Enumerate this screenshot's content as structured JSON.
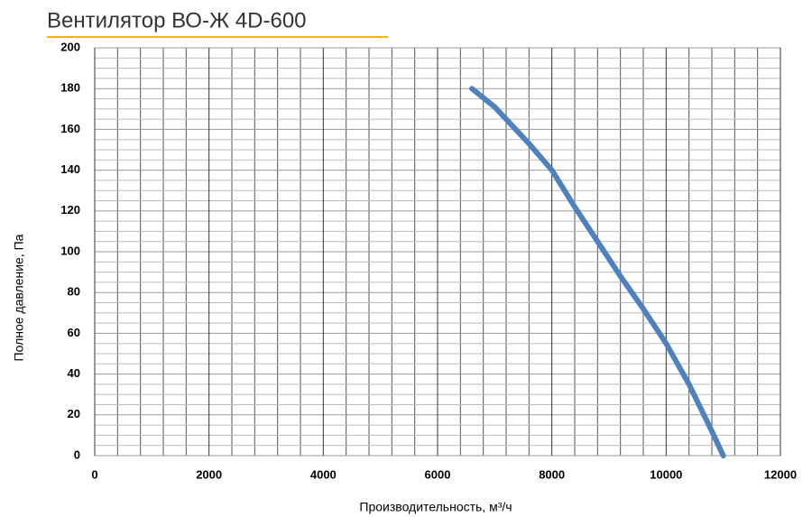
{
  "chart_data": {
    "type": "line",
    "title": "Вентилятор ВО-Ж 4D-600",
    "x_label": "Производительность, м³/ч",
    "y_label": "Полное давление, Па",
    "x": [
      6600,
      7000,
      7600,
      8000,
      8400,
      8800,
      9200,
      9600,
      10000,
      10400,
      10800,
      11000
    ],
    "series": [
      {
        "name": "ВО-Ж 4D-600",
        "color": "#4f81bd",
        "values": [
          180,
          171,
          153,
          140,
          122,
          105,
          88,
          72,
          55,
          35,
          12,
          0
        ]
      }
    ],
    "xlim": [
      0,
      12000
    ],
    "xticks": [
      0,
      2000,
      4000,
      6000,
      8000,
      10000,
      12000
    ],
    "ylim": [
      0,
      200
    ],
    "yticks": [
      0,
      20,
      40,
      60,
      80,
      100,
      120,
      140,
      160,
      180,
      200
    ],
    "grid": true
  }
}
